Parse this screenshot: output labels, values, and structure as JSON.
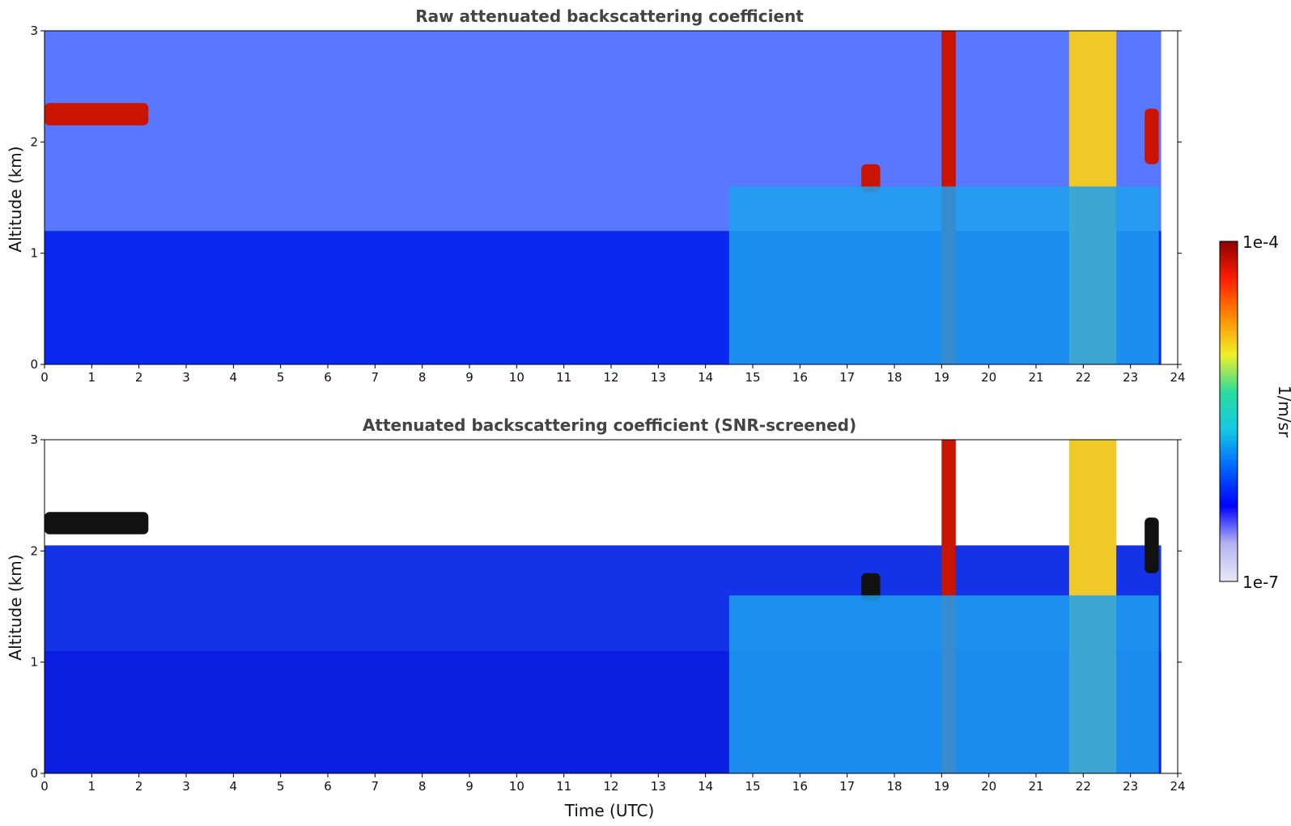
{
  "chart_data": [
    {
      "type": "heatmap",
      "title": "Raw attenuated backscattering coefficient",
      "xlabel": "",
      "ylabel": "Altitude (km)",
      "xlim": [
        0,
        24
      ],
      "ylim": [
        0,
        3
      ],
      "x_ticks": [
        "0",
        "1",
        "2",
        "3",
        "4",
        "5",
        "6",
        "7",
        "8",
        "9",
        "10",
        "11",
        "12",
        "13",
        "14",
        "15",
        "16",
        "17",
        "18",
        "19",
        "20",
        "21",
        "22",
        "23",
        "24"
      ],
      "y_ticks": [
        "0",
        "1",
        "2",
        "3"
      ],
      "data_end_hour": 23.65,
      "features": [
        {
          "name": "cloud layer",
          "x_range": [
            0,
            2.2
          ],
          "y_range": [
            2.15,
            2.35
          ],
          "level": "high"
        },
        {
          "name": "cloud",
          "x_range": [
            17.3,
            17.7
          ],
          "y_range": [
            1.55,
            1.8
          ],
          "level": "high"
        },
        {
          "name": "precipitation",
          "x_range": [
            19.0,
            19.3
          ],
          "y_range": [
            0,
            3
          ],
          "level": "high"
        },
        {
          "name": "precipitation",
          "x_range": [
            21.7,
            22.7
          ],
          "y_range": [
            0,
            3
          ],
          "level": "medium-high"
        },
        {
          "name": "cloud",
          "x_range": [
            23.3,
            23.6
          ],
          "y_range": [
            1.8,
            2.3
          ],
          "level": "high"
        },
        {
          "name": "aerosol layer",
          "x_range": [
            14.5,
            23.6
          ],
          "y_range": [
            0,
            1.6
          ],
          "level": "medium"
        }
      ]
    },
    {
      "type": "heatmap",
      "title": "Attenuated backscattering coefficient (SNR-screened)",
      "xlabel": "Time (UTC)",
      "ylabel": "Altitude (km)",
      "xlim": [
        0,
        24
      ],
      "ylim": [
        0,
        3
      ],
      "x_ticks": [
        "0",
        "1",
        "2",
        "3",
        "4",
        "5",
        "6",
        "7",
        "8",
        "9",
        "10",
        "11",
        "12",
        "13",
        "14",
        "15",
        "16",
        "17",
        "18",
        "19",
        "20",
        "21",
        "22",
        "23",
        "24"
      ],
      "y_ticks": [
        "0",
        "1",
        "2",
        "3"
      ],
      "data_end_hour": 23.65,
      "features": [
        {
          "name": "cloud layer",
          "x_range": [
            0,
            2.2
          ],
          "y_range": [
            2.15,
            2.35
          ],
          "level": "saturated"
        },
        {
          "name": "cloud",
          "x_range": [
            17.3,
            17.7
          ],
          "y_range": [
            1.55,
            1.8
          ],
          "level": "saturated"
        },
        {
          "name": "precipitation",
          "x_range": [
            19.0,
            19.3
          ],
          "y_range": [
            0,
            3
          ],
          "level": "high"
        },
        {
          "name": "precipitation",
          "x_range": [
            21.7,
            22.7
          ],
          "y_range": [
            0,
            3
          ],
          "level": "medium-high"
        },
        {
          "name": "cloud",
          "x_range": [
            23.3,
            23.6
          ],
          "y_range": [
            1.8,
            2.3
          ],
          "level": "saturated"
        },
        {
          "name": "aerosol layer",
          "x_range": [
            14.5,
            23.6
          ],
          "y_range": [
            0,
            1.6
          ],
          "level": "medium"
        }
      ]
    }
  ],
  "colorbar": {
    "max_label": "1e-4",
    "min_label": "1e-7",
    "units_label": "1/m/sr",
    "colors": [
      "#e8e8f8",
      "#b4b4f0",
      "#0000ff",
      "#0064ff",
      "#14c8e6",
      "#2adc9e",
      "#f0f028",
      "#ff8c00",
      "#ff1e00",
      "#8c0000"
    ]
  }
}
